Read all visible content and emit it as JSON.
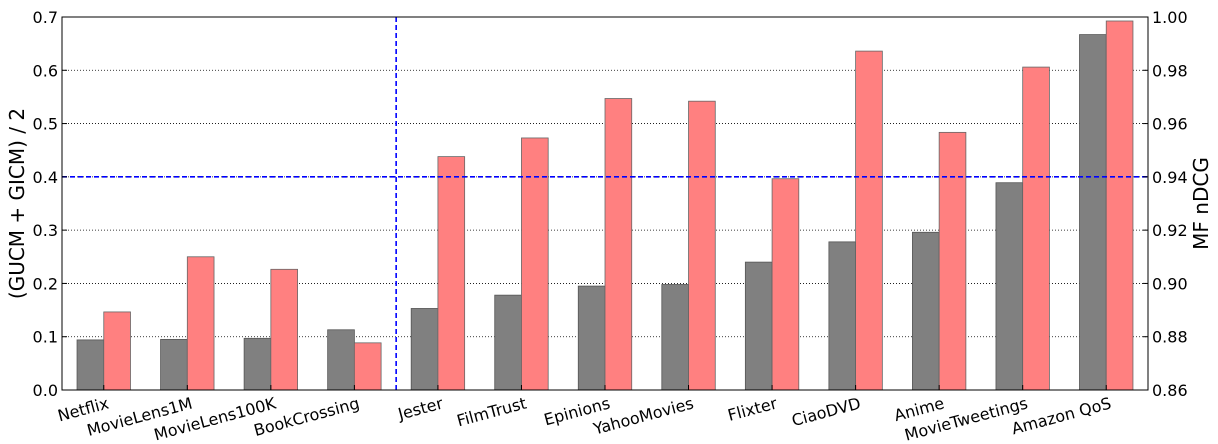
{
  "chart_data": {
    "type": "bar",
    "categories": [
      "Netflix",
      "MovieLens1M",
      "MovieLens100K",
      "BookCrossing",
      "Jester",
      "FilmTrust",
      "Epinions",
      "YahooMovies",
      "Flixter",
      "CiaoDVD",
      "Anime",
      "MovieTweetings",
      "Amazon QoS"
    ],
    "series": [
      {
        "axis": "left",
        "color": "#808080",
        "values": [
          0.094,
          0.095,
          0.097,
          0.113,
          0.153,
          0.178,
          0.195,
          0.198,
          0.24,
          0.278,
          0.296,
          0.389,
          0.667
        ]
      },
      {
        "axis": "right",
        "color": "#ff8080",
        "values": [
          0.8893,
          0.91,
          0.9053,
          0.8777,
          0.9476,
          0.9546,
          0.9694,
          0.9684,
          0.9393,
          0.9872,
          0.9567,
          0.9812,
          0.9985
        ]
      }
    ],
    "ylabel": "(GUCM + GICM) / 2",
    "y2label": "MF nDCG",
    "ylim": [
      0,
      0.7
    ],
    "y2lim": [
      0.86,
      1.0
    ],
    "yticks": [
      "0.0",
      "0.1",
      "0.2",
      "0.3",
      "0.4",
      "0.5",
      "0.6",
      "0.7"
    ],
    "y2ticks": [
      "0.86",
      "0.88",
      "0.90",
      "0.92",
      "0.94",
      "0.96",
      "0.98",
      "1.00"
    ],
    "hline": 0.4,
    "vline_after_category": "BookCrossing",
    "grid": "horizontal dotted",
    "reference_line_color": "#0000ff"
  }
}
